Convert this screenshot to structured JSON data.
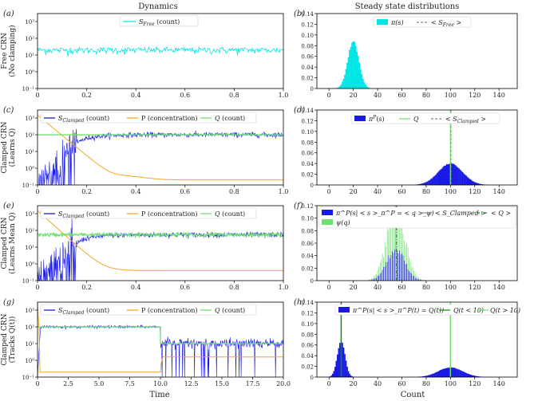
{
  "column_titles": {
    "left": "Dynamics",
    "right": "Steady state distributions"
  },
  "xlabels": {
    "left": "Time",
    "right": "Count"
  },
  "colors": {
    "cyan": "#00e5e5",
    "blue": "#1a1ae6",
    "orange": "#f5a623",
    "green": "#6fe06f",
    "dgreen": "#0a8f0a",
    "gray": "#888888"
  },
  "chart_data": [
    {
      "id": "a",
      "type": "line",
      "panel_label": "(a)",
      "row_label": [
        "Free CRN",
        "(No clamping)"
      ],
      "xlim": [
        0,
        1.0
      ],
      "yscale": "log",
      "ylim": [
        0.1,
        3000
      ],
      "xticks": [
        "0",
        "0.2",
        "0.4",
        "0.6",
        "0.8",
        "1.0"
      ],
      "series": [
        {
          "name": "S_Free (count)",
          "legend": "S",
          "legend_sub": "Free",
          "legend_rest": " (count)",
          "color": "cyan",
          "mean": 20
        }
      ]
    },
    {
      "id": "b",
      "type": "bar",
      "panel_label": "(b)",
      "xlim": [
        -10,
        155
      ],
      "ylim": [
        0,
        0.14
      ],
      "xticks": [
        "0",
        "20",
        "40",
        "60",
        "80",
        "100",
        "120",
        "140"
      ],
      "yticks": [
        "0",
        "0.02",
        "0.04",
        "0.06",
        "0.08",
        "0.10",
        "0.12",
        "0.14"
      ],
      "series": [
        {
          "name": "π(s)",
          "color": "cyan",
          "mean": 20,
          "peak": 0.088
        }
      ],
      "legend": [
        {
          "text": "π(s)",
          "style": "box",
          "color": "cyan"
        },
        {
          "text": "< S_Free >",
          "main": "< S",
          "sub": "Free",
          "rest": " >",
          "style": "dash",
          "color": "gray"
        }
      ]
    },
    {
      "id": "c",
      "type": "line",
      "panel_label": "(c)",
      "row_label": [
        "Clamped CRN",
        "(Learns Q)"
      ],
      "xlim": [
        0,
        1.0
      ],
      "yscale": "log",
      "ylim": [
        0.1,
        3000
      ],
      "xticks": [
        "0",
        "0.2",
        "0.4",
        "0.6",
        "0.8",
        "1.0"
      ],
      "series": [
        {
          "name": "S_Clamped (count)",
          "color": "blue"
        },
        {
          "name": "P (concentration)",
          "color": "orange"
        },
        {
          "name": "Q (count)",
          "color": "green",
          "value": 100
        }
      ],
      "legend": [
        {
          "main": "S",
          "sub": "Clamped",
          "rest": " (count)",
          "color": "blue"
        },
        {
          "main": "P (concentration)",
          "sub": "",
          "rest": "",
          "color": "orange"
        },
        {
          "main": "Q",
          "sub": "",
          "rest": " (count)",
          "color": "green",
          "italic": true
        }
      ]
    },
    {
      "id": "d",
      "type": "bar",
      "panel_label": "(d)",
      "xlim": [
        -10,
        155
      ],
      "ylim": [
        0,
        0.14
      ],
      "xticks": [
        "0",
        "20",
        "40",
        "60",
        "80",
        "100",
        "120",
        "140"
      ],
      "yticks": [
        "0",
        "0.02",
        "0.04",
        "0.06",
        "0.08",
        "0.10",
        "0.12",
        "0.14"
      ],
      "series": [
        {
          "name": "π^P(s)",
          "color": "blue",
          "mean": 100,
          "peak": 0.04
        }
      ],
      "legend": [
        {
          "main": "π",
          "sup": "P",
          "rest": "(s)",
          "style": "box",
          "color": "blue"
        },
        {
          "main": "Q",
          "rest": "",
          "style": "line",
          "color": "green",
          "italic": true
        },
        {
          "main": "< S",
          "sub": "Clamped",
          "rest": " >",
          "style": "dash",
          "color": "gray"
        }
      ]
    },
    {
      "id": "e",
      "type": "line",
      "panel_label": "(e)",
      "row_label": [
        "Clamped CRN",
        "(Learns Mean Q)"
      ],
      "xlim": [
        0,
        1.0
      ],
      "yscale": "log",
      "ylim": [
        0.1,
        3000
      ],
      "xticks": [
        "0",
        "0.2",
        "0.4",
        "0.6",
        "0.8",
        "1.0"
      ],
      "series": [
        {
          "name": "S_Clamped (count)",
          "color": "blue"
        },
        {
          "name": "P (concentration)",
          "color": "orange"
        },
        {
          "name": "Q (count)",
          "color": "green",
          "value": 55
        }
      ],
      "legend": [
        {
          "main": "S",
          "sub": "Clamped",
          "rest": " (count)",
          "color": "blue"
        },
        {
          "main": "P (concentration)",
          "sub": "",
          "rest": "",
          "color": "orange"
        },
        {
          "main": "Q",
          "sub": "",
          "rest": " (count)",
          "color": "green",
          "italic": true
        }
      ]
    },
    {
      "id": "f",
      "type": "bar",
      "panel_label": "(f)",
      "xlim": [
        -10,
        155
      ],
      "ylim": [
        0,
        0.12
      ],
      "xticks": [
        "0",
        "20",
        "40",
        "60",
        "80",
        "100",
        "120",
        "140"
      ],
      "yticks": [
        "0",
        "0.02",
        "0.04",
        "0.06",
        "0.08",
        "0.10",
        "0.12"
      ],
      "series": [
        {
          "name": "π^P(s|<s>_π^P = <q>_ψ)",
          "color": "blue",
          "mean": 55,
          "peak": 0.05
        },
        {
          "name": "ψ(q)",
          "color": "green",
          "mean": 55,
          "peak": 0.11
        }
      ],
      "legend": [
        {
          "text": "π^P(s| < s >_π^P = < q >_ψ)",
          "style": "box",
          "color": "blue"
        },
        {
          "text": "ψ(q)",
          "style": "box",
          "color": "green"
        },
        {
          "text": "< S_Clamped >",
          "style": "line",
          "color": "gray"
        },
        {
          "text": "< Q >",
          "style": "dashdot",
          "color": "dgreen"
        }
      ]
    },
    {
      "id": "g",
      "type": "line",
      "panel_label": "(g)",
      "row_label": [
        "Clamped CRN",
        "(Tracks Q(t))"
      ],
      "xlim": [
        0,
        20.0
      ],
      "yscale": "log",
      "ylim": [
        0.1,
        3000
      ],
      "xticks": [
        "0",
        "2.5",
        "5.0",
        "7.5",
        "10.0",
        "12.5",
        "15.0",
        "17.5",
        "20.0"
      ],
      "series": [
        {
          "name": "S_Clamped (count)",
          "color": "blue"
        },
        {
          "name": "P (concentration)",
          "color": "orange"
        },
        {
          "name": "Q (count)",
          "color": "green",
          "values": [
            100,
            10
          ],
          "switch_time": 10
        }
      ],
      "legend": [
        {
          "main": "S",
          "sub": "Clamped",
          "rest": " (count)",
          "color": "blue"
        },
        {
          "main": "P (concentration)",
          "sub": "",
          "rest": "",
          "color": "orange"
        },
        {
          "main": "Q",
          "sub": "",
          "rest": " (count)",
          "color": "green",
          "italic": true
        }
      ]
    },
    {
      "id": "h",
      "type": "bar",
      "panel_label": "(h)",
      "xlim": [
        -10,
        155
      ],
      "ylim": [
        0,
        0.14
      ],
      "xticks": [
        "0",
        "20",
        "40",
        "60",
        "80",
        "100",
        "120",
        "140"
      ],
      "yticks": [
        "0",
        "0.02",
        "0.04",
        "0.06",
        "0.08",
        "0.10",
        "0.12",
        "0.14"
      ],
      "series": [
        {
          "name": "π^P(s|<s>_π^P(t) = Q(t)) low",
          "color": "blue",
          "mean": 10,
          "peak": 0.066
        },
        {
          "name": "π^P(s|<s>_π^P(t) = Q(t)) high",
          "color": "blue",
          "mean": 100,
          "peak": 0.018
        }
      ],
      "legend": [
        {
          "text": "π^P(s| < s >_π^P(t) = Q(t))",
          "style": "box",
          "color": "blue"
        },
        {
          "text": "Q(t < 10)",
          "style": "line",
          "color": "dgreen"
        },
        {
          "text": "Q(t > 10)",
          "style": "line",
          "color": "green"
        }
      ]
    }
  ],
  "log_tick_labels": [
    "10⁻¹",
    "10⁰",
    "10¹",
    "10²",
    "10³"
  ]
}
